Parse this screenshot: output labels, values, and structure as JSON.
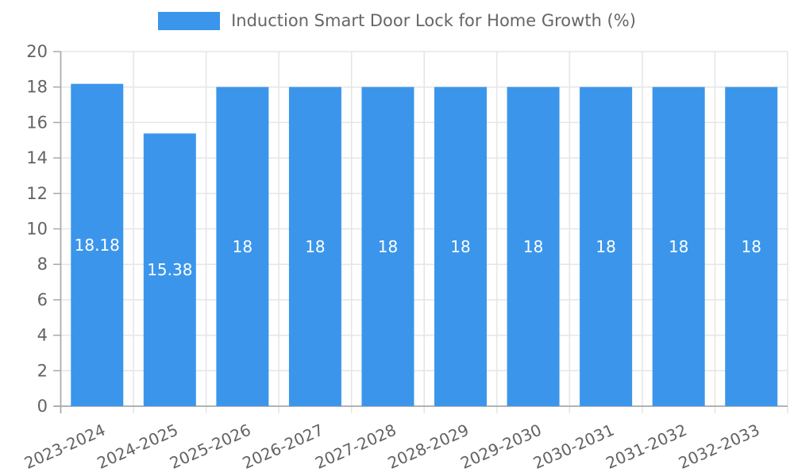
{
  "chart_data": {
    "type": "bar",
    "title": "Induction Smart Door Lock for Home Growth (%)",
    "categories": [
      "2023-2024",
      "2024-2025",
      "2025-2026",
      "2026-2027",
      "2027-2028",
      "2028-2029",
      "2029-2030",
      "2030-2031",
      "2031-2032",
      "2032-2033"
    ],
    "values": [
      18.18,
      15.38,
      18,
      18,
      18,
      18,
      18,
      18,
      18,
      18
    ],
    "bar_labels": [
      "18.18",
      "15.38",
      "18",
      "18",
      "18",
      "18",
      "18",
      "18",
      "18",
      "18"
    ],
    "xlabel": "",
    "ylabel": "",
    "ylim": [
      0,
      20
    ],
    "yticks": [
      0,
      2,
      4,
      6,
      8,
      10,
      12,
      14,
      16,
      18,
      20
    ],
    "grid": true,
    "legend_position": "top",
    "x_label_rotation_deg": -24,
    "colors": {
      "bar": "#3b96eb",
      "bar_label": "#ffffff",
      "grid": "#e5e5e5",
      "axis": "#a8a8a8",
      "tick_label": "#636363",
      "legend_text": "#666666",
      "background": "#ffffff"
    }
  }
}
